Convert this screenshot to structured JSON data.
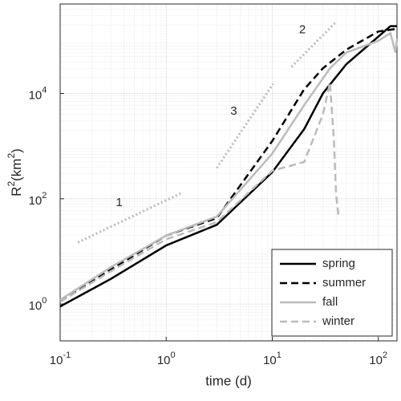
{
  "chart_data": {
    "type": "line",
    "xlabel": "time (d)",
    "ylabel": [
      "R",
      "2",
      "(km",
      "2",
      ")"
    ],
    "xscale": "log",
    "yscale": "log",
    "grid": true,
    "legend": "lower right",
    "xlim": [
      0.1,
      150
    ],
    "ylim": [
      0.2,
      500000
    ],
    "xticks": [
      {
        "value": 0.1,
        "label": "10",
        "sup": "-1"
      },
      {
        "value": 1,
        "label": "10",
        "sup": "0"
      },
      {
        "value": 10,
        "label": "10",
        "sup": "1"
      },
      {
        "value": 100,
        "label": "10",
        "sup": "2"
      }
    ],
    "yticks": [
      {
        "value": 1,
        "label": "10",
        "sup": "0"
      },
      {
        "value": 100,
        "label": "10",
        "sup": "2"
      },
      {
        "value": 10000,
        "label": "10",
        "sup": "4"
      }
    ],
    "series": [
      {
        "name": "spring",
        "color": "#000000",
        "style": "solid",
        "x": [
          0.1,
          0.3,
          1,
          3,
          10,
          20,
          30,
          50,
          100,
          130,
          150
        ],
        "values": [
          0.9,
          3,
          13,
          32,
          320,
          2100,
          10000,
          36000,
          120000,
          190000,
          190000
        ]
      },
      {
        "name": "summer",
        "color": "#000000",
        "style": "dashed",
        "x": [
          0.1,
          0.3,
          1,
          3,
          10,
          20,
          30,
          50,
          100,
          150
        ],
        "values": [
          1.15,
          4.5,
          20,
          43,
          1250,
          12000,
          30000,
          68000,
          150000,
          170000
        ]
      },
      {
        "name": "fall",
        "color": "#bbbbbb",
        "style": "solid",
        "x": [
          0.1,
          0.3,
          1,
          3,
          10,
          20,
          35,
          50,
          100,
          130,
          145,
          150
        ],
        "values": [
          1.2,
          5,
          20,
          46,
          720,
          6000,
          30000,
          60000,
          100000,
          140000,
          60000,
          110000
        ]
      },
      {
        "name": "winter",
        "color": "#bbbbbb",
        "style": "dashed",
        "x": [
          0.1,
          0.3,
          1,
          3,
          10,
          20,
          30,
          35,
          38,
          40,
          42
        ],
        "values": [
          1.1,
          4.2,
          17,
          36,
          340,
          500,
          4000,
          16000,
          1500,
          120,
          50
        ]
      }
    ],
    "reference_lines": [
      {
        "label": "1",
        "x": [
          0.147,
          1.44
        ],
        "values": [
          14.8,
          133
        ]
      },
      {
        "label": "2",
        "x": [
          15.2,
          39.6
        ],
        "values": [
          32000,
          225000
        ]
      },
      {
        "label": "3",
        "x": [
          3.0,
          10.2
        ],
        "values": [
          384,
          15200
        ]
      }
    ]
  }
}
